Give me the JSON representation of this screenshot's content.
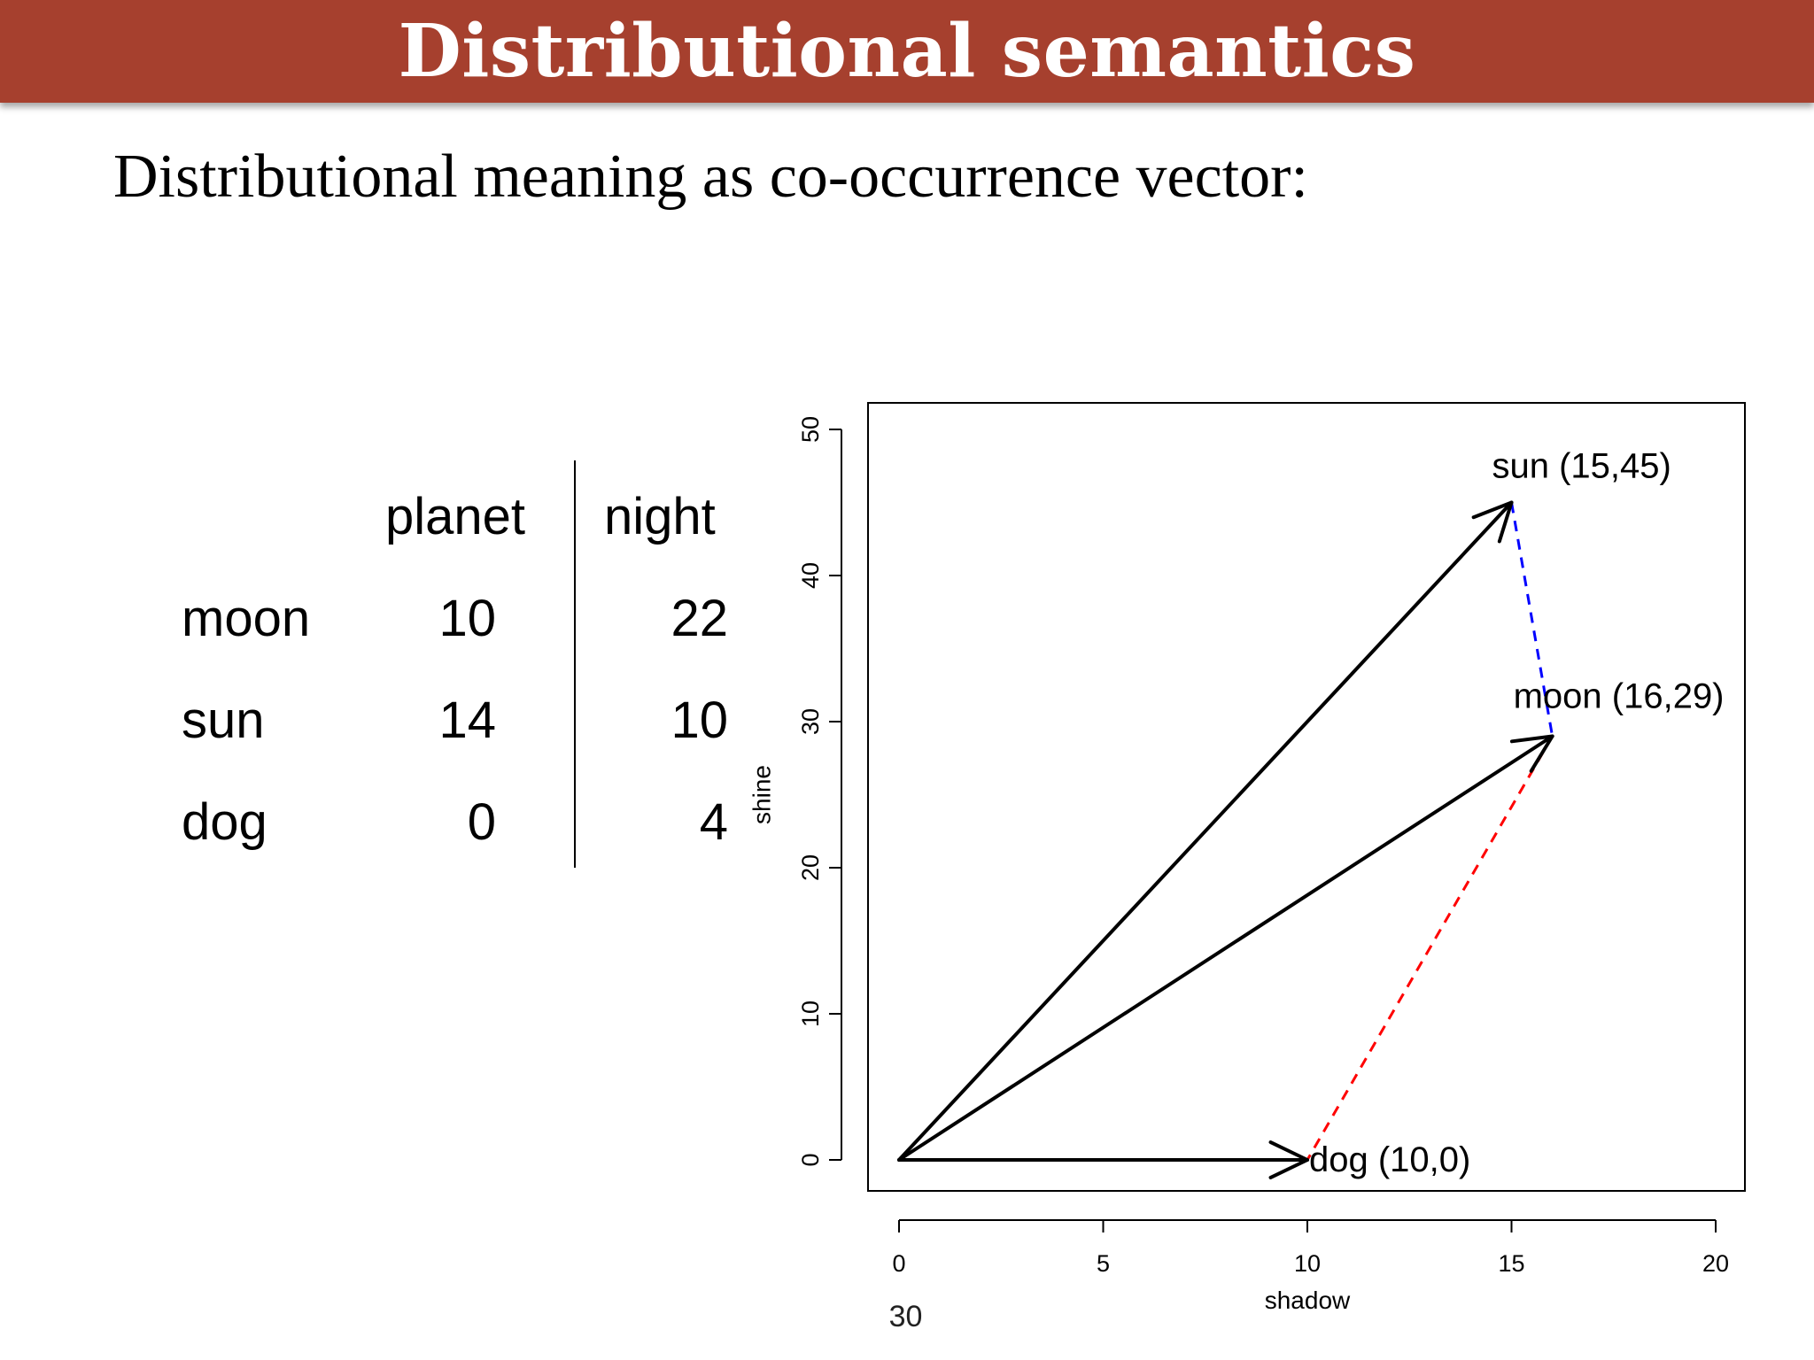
{
  "slide": {
    "title": "Distributional semantics",
    "subtitle": "Distributional meaning as co-occurrence vector:",
    "page_number": "30",
    "colors": {
      "title_bar": "#A6402E",
      "title_text": "#FFFFFF",
      "dashed_blue": "#0000FF",
      "dashed_red": "#FF0000"
    }
  },
  "table": {
    "columns": [
      "planet",
      "night"
    ],
    "rows": [
      {
        "label": "moon",
        "values": [
          "10",
          "22"
        ]
      },
      {
        "label": "sun",
        "values": [
          "14",
          "10"
        ]
      },
      {
        "label": "dog",
        "values": [
          "0",
          "4"
        ]
      }
    ]
  },
  "chart_data": {
    "type": "scatter",
    "xlabel": "shadow",
    "ylabel": "shine",
    "xlim": [
      0,
      20
    ],
    "ylim": [
      0,
      50
    ],
    "xticks": [
      0,
      5,
      10,
      15,
      20
    ],
    "yticks": [
      0,
      10,
      20,
      30,
      40,
      50
    ],
    "grid": false,
    "vectors": [
      {
        "label": "sun (15,45)",
        "x": 15,
        "y": 45
      },
      {
        "label": "moon (16,29)",
        "x": 16,
        "y": 29
      },
      {
        "label": "dog (10,0)",
        "x": 10,
        "y": 0
      }
    ],
    "dashed_lines": [
      {
        "from": [
          15,
          45
        ],
        "to": [
          16,
          29
        ],
        "color": "#0000FF"
      },
      {
        "from": [
          16,
          29
        ],
        "to": [
          10,
          0
        ],
        "color": "#FF0000"
      }
    ]
  }
}
